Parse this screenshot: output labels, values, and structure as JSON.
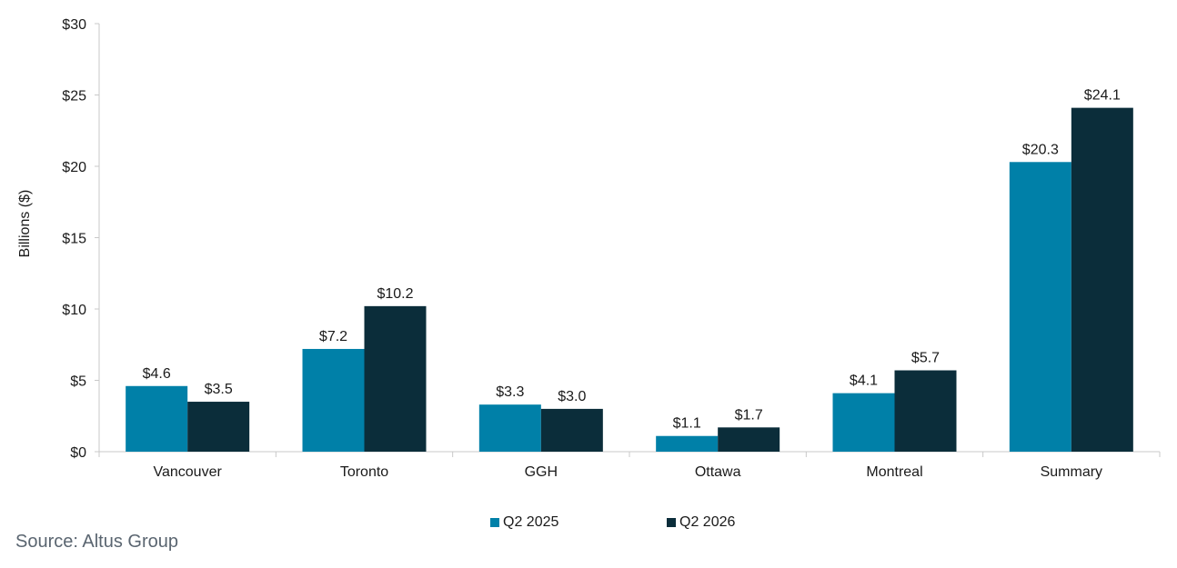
{
  "chart_data": {
    "type": "bar",
    "categories": [
      "Vancouver",
      "Toronto",
      "GGH",
      "Ottawa",
      "Montreal",
      "Summary"
    ],
    "series": [
      {
        "name": "Q2 2025",
        "values": [
          4.6,
          7.2,
          3.3,
          1.1,
          4.1,
          20.3
        ],
        "labels": [
          "$4.6",
          "$7.2",
          "$3.3",
          "$1.1",
          "$4.1",
          "$20.3"
        ],
        "color": "#0080A8"
      },
      {
        "name": "Q2 2026",
        "values": [
          3.5,
          10.2,
          3.0,
          1.7,
          5.7,
          24.1
        ],
        "labels": [
          "$3.5",
          "$10.2",
          "$3.0",
          "$1.7",
          "$5.7",
          "$24.1"
        ],
        "color": "#0B2D3A"
      }
    ],
    "ylabel": "Billions ($)",
    "ylim": [
      0,
      30
    ],
    "yticks": [
      0,
      5,
      10,
      15,
      20,
      25,
      30
    ],
    "ytick_labels": [
      "$0",
      "$5",
      "$10",
      "$15",
      "$20",
      "$25",
      "$30"
    ],
    "grid": false,
    "legend_position": "bottom"
  },
  "source": "Source:  Altus Group"
}
